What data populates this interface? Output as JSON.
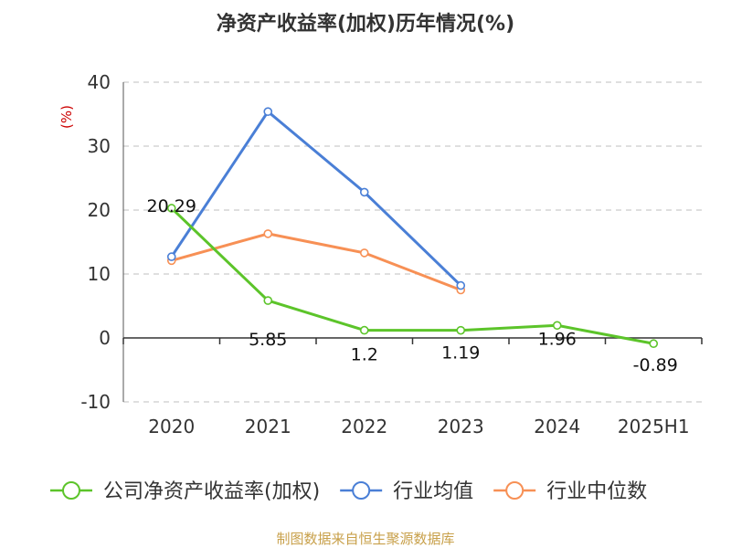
{
  "chart_data": {
    "type": "line",
    "title": "净资产收益率(加权)历年情况(%)",
    "ylabel": "(%)",
    "xlabel": "",
    "categories": [
      "2020",
      "2021",
      "2022",
      "2023",
      "2024",
      "2025H1"
    ],
    "ylim": [
      -10,
      40
    ],
    "yticks": [
      -10,
      0,
      10,
      20,
      30,
      40
    ],
    "grid": true,
    "legend_position": "bottom",
    "series": [
      {
        "name": "公司净资产收益率(加权)",
        "color": "#5cc42a",
        "values": [
          20.29,
          5.85,
          1.2,
          1.19,
          1.96,
          -0.89
        ],
        "labels": [
          "20.29",
          "5.85",
          "1.2",
          "1.19",
          "1.96",
          "-0.89"
        ]
      },
      {
        "name": "行业均值",
        "color": "#4a7fd6",
        "values": [
          12.7,
          35.4,
          22.8,
          8.2,
          null,
          null
        ]
      },
      {
        "name": "行业中位数",
        "color": "#f79055",
        "values": [
          12.1,
          16.3,
          13.3,
          7.5,
          null,
          null
        ]
      }
    ]
  },
  "source": "制图数据来自恒生聚源数据库"
}
